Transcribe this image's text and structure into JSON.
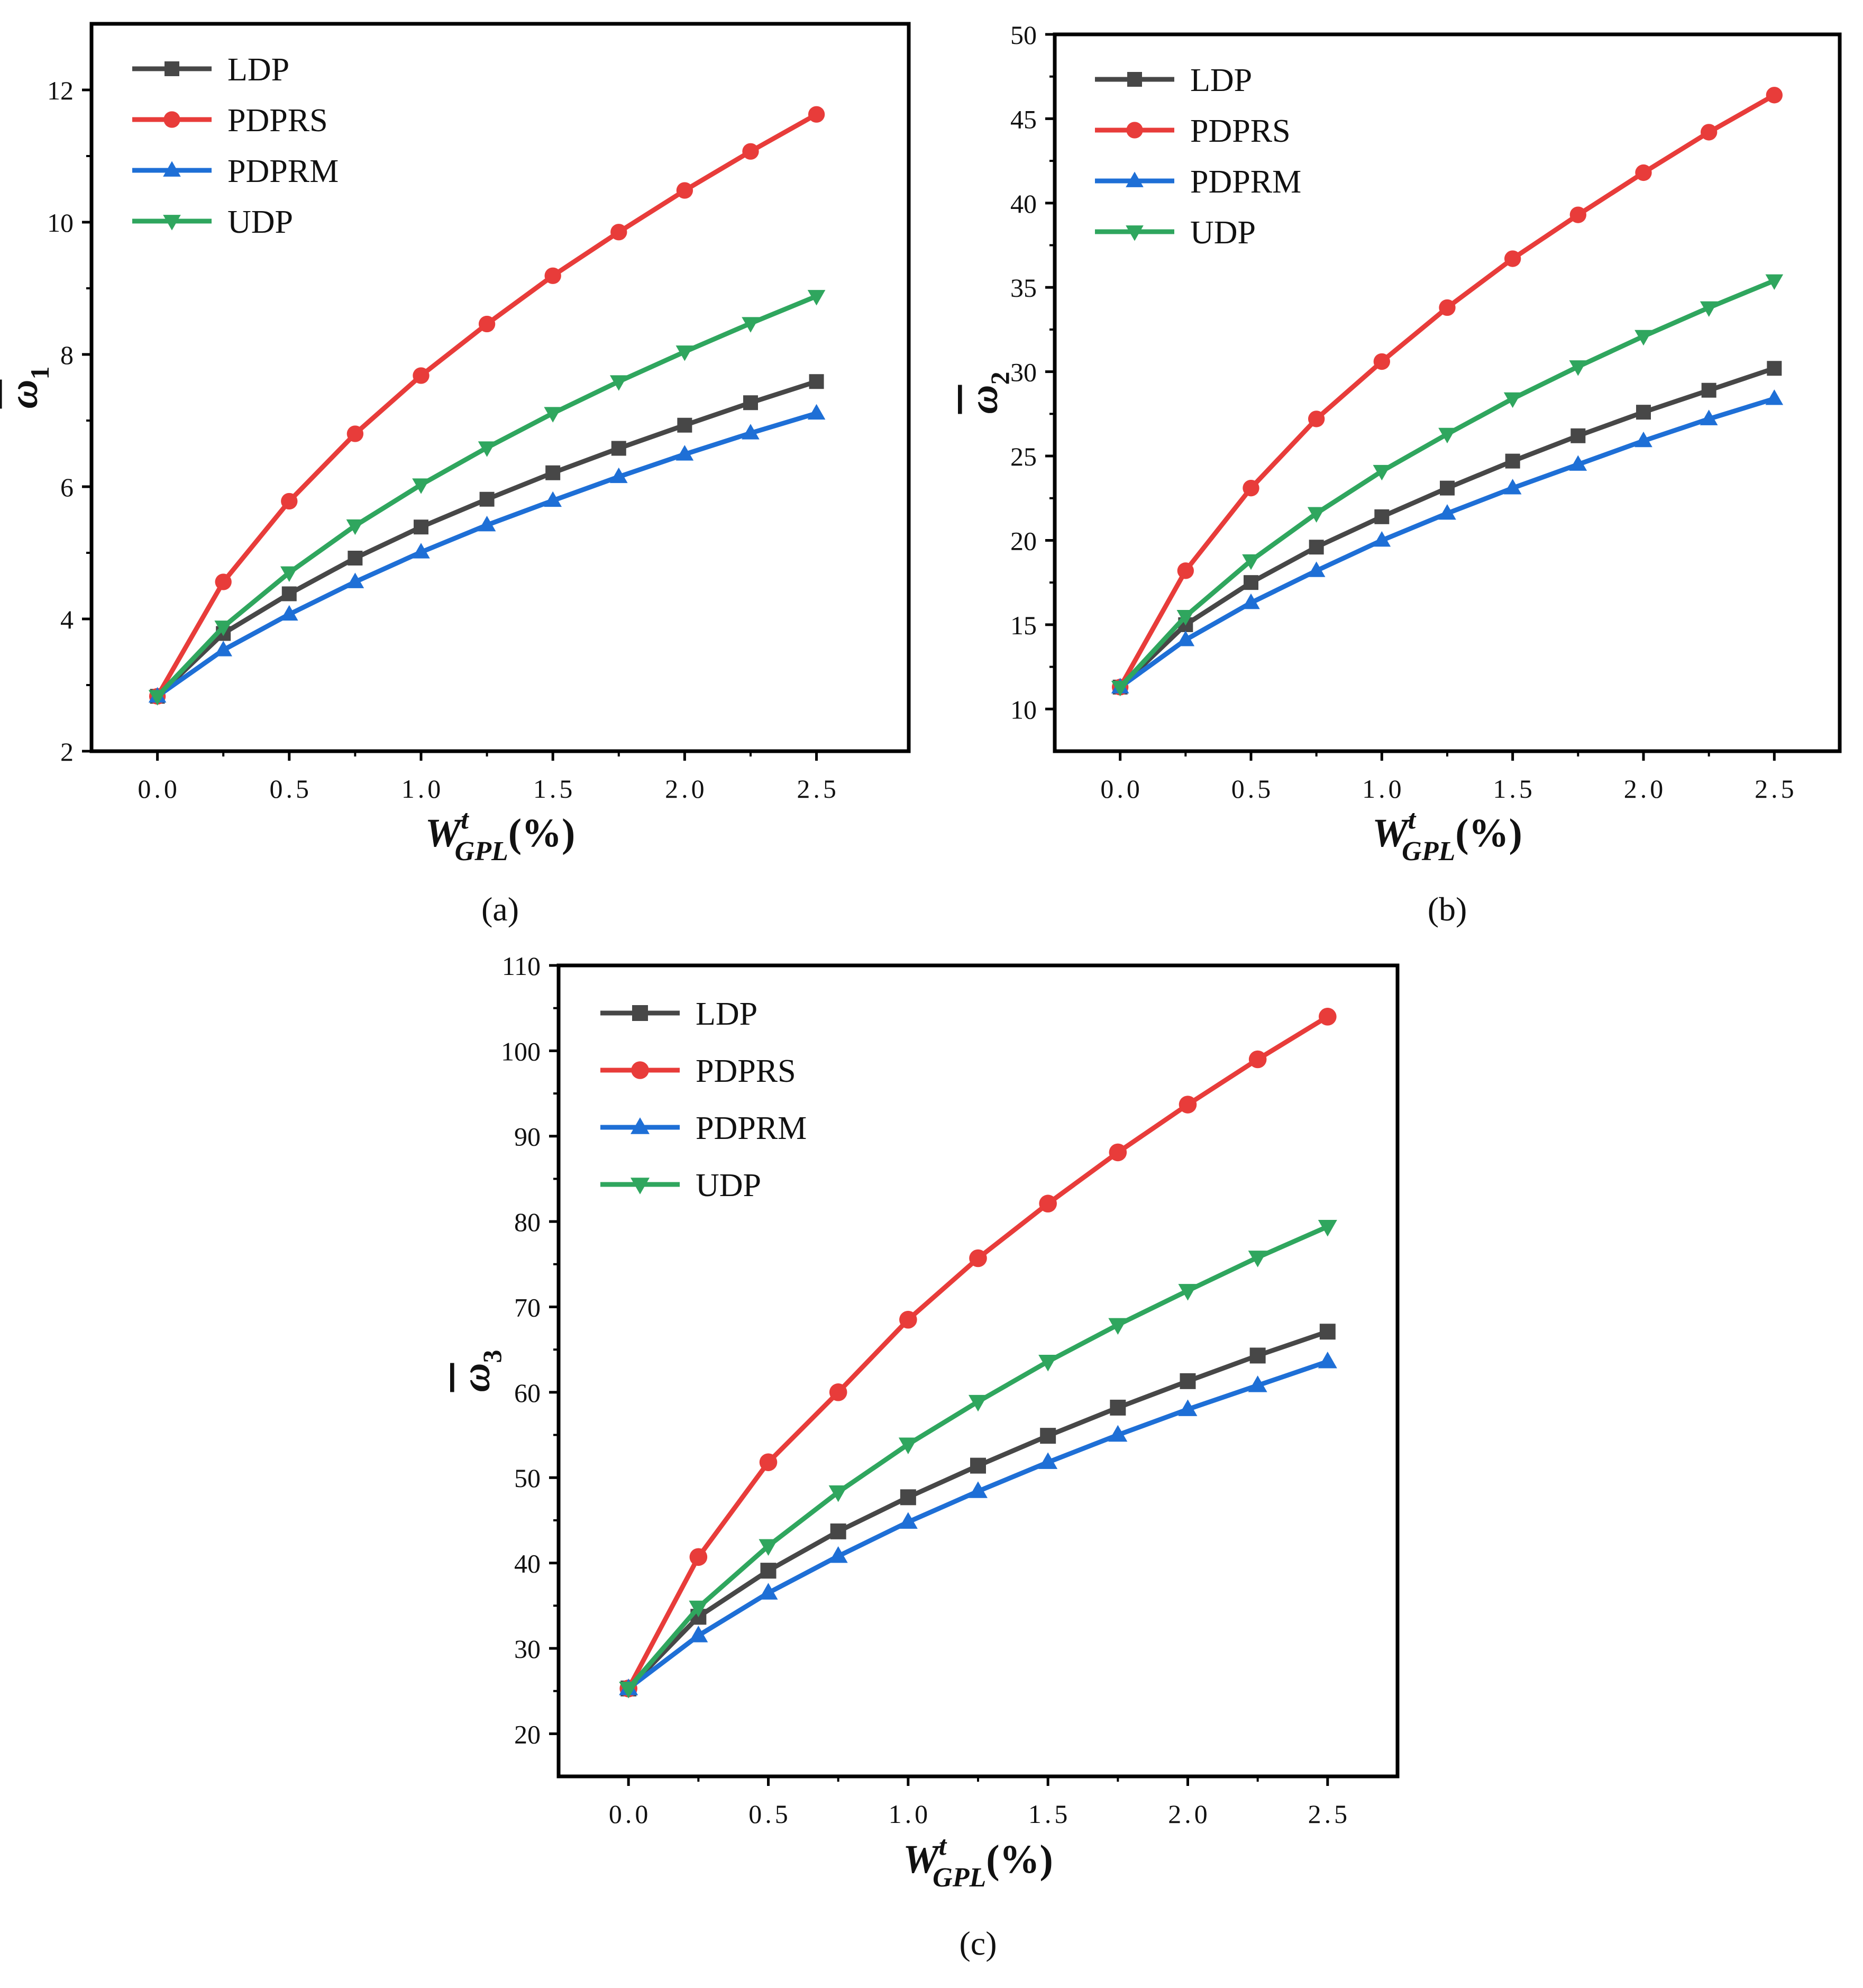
{
  "colors": {
    "LDP": "#474747",
    "PDPRS": "#e83c3a",
    "PDPRM": "#1e6fd6",
    "UDP": "#2fa65e"
  },
  "chart_data": [
    {
      "type": "line",
      "panel": "(a)",
      "xlabel": "W_GPL^t(%)",
      "xlabel_parts": {
        "base": "W",
        "sub": "GPL",
        "sup": "t",
        "suffix": "(%)"
      },
      "ylabel": "ω̄1",
      "ylabel_parts": {
        "symbol": "ω",
        "sub": "1"
      },
      "xlim": [
        -0.25,
        2.85
      ],
      "ylim": [
        2,
        13
      ],
      "xticks": [
        0.0,
        0.5,
        1.0,
        1.5,
        2.0,
        2.5
      ],
      "xtick_labels": [
        "0.0",
        "0.5",
        "1.0",
        "1.5",
        "2.0",
        "2.5"
      ],
      "yticks": [
        2,
        4,
        6,
        8,
        10,
        12
      ],
      "ytick_labels": [
        "2",
        "4",
        "6",
        "8",
        "10",
        "12"
      ],
      "x": [
        0,
        0.25,
        0.5,
        0.75,
        1.0,
        1.25,
        1.5,
        1.75,
        2.0,
        2.25,
        2.5
      ],
      "legend_position": "top-left",
      "series": [
        {
          "name": "LDP",
          "marker": "square",
          "values": [
            2.83,
            3.78,
            4.38,
            4.92,
            5.39,
            5.81,
            6.21,
            6.58,
            6.93,
            7.27,
            7.59
          ]
        },
        {
          "name": "PDPRS",
          "marker": "circle",
          "values": [
            2.83,
            4.56,
            5.78,
            6.8,
            7.68,
            8.46,
            9.19,
            9.85,
            10.48,
            11.07,
            11.63
          ]
        },
        {
          "name": "PDPRM",
          "marker": "triangle-up",
          "values": [
            2.83,
            3.53,
            4.07,
            4.56,
            5.01,
            5.42,
            5.79,
            6.15,
            6.49,
            6.81,
            7.11
          ]
        },
        {
          "name": "UDP",
          "marker": "triangle-down",
          "values": [
            2.83,
            3.88,
            4.7,
            5.41,
            6.03,
            6.59,
            7.11,
            7.59,
            8.04,
            8.47,
            8.88
          ]
        }
      ]
    },
    {
      "type": "line",
      "panel": "(b)",
      "xlabel": "W_GPL^t(%)",
      "xlabel_parts": {
        "base": "W",
        "sub": "GPL",
        "sup": "t",
        "suffix": "(%)"
      },
      "ylabel": "ω̄2",
      "ylabel_parts": {
        "symbol": "ω",
        "sub": "2"
      },
      "xlim": [
        -0.25,
        2.75
      ],
      "ylim": [
        7.5,
        50
      ],
      "xticks": [
        0.0,
        0.5,
        1.0,
        1.5,
        2.0,
        2.5
      ],
      "xtick_labels": [
        "0.0",
        "0.5",
        "1.0",
        "1.5",
        "2.0",
        "2.5"
      ],
      "yticks": [
        10,
        15,
        20,
        25,
        30,
        35,
        40,
        45,
        50
      ],
      "ytick_labels": [
        "10",
        "15",
        "20",
        "25",
        "30",
        "35",
        "40",
        "45",
        "50"
      ],
      "x": [
        0,
        0.25,
        0.5,
        0.75,
        1.0,
        1.25,
        1.5,
        1.75,
        2.0,
        2.25,
        2.5
      ],
      "legend_position": "top-left",
      "series": [
        {
          "name": "LDP",
          "marker": "square",
          "values": [
            11.3,
            15.0,
            17.5,
            19.6,
            21.4,
            23.1,
            24.7,
            26.2,
            27.6,
            28.9,
            30.2
          ]
        },
        {
          "name": "PDPRS",
          "marker": "circle",
          "values": [
            11.3,
            18.2,
            23.1,
            27.2,
            30.6,
            33.8,
            36.7,
            39.3,
            41.8,
            44.2,
            46.4
          ]
        },
        {
          "name": "PDPRM",
          "marker": "triangle-up",
          "values": [
            11.3,
            14.1,
            16.3,
            18.2,
            20.0,
            21.6,
            23.1,
            24.5,
            25.9,
            27.2,
            28.4
          ]
        },
        {
          "name": "UDP",
          "marker": "triangle-down",
          "values": [
            11.3,
            15.5,
            18.8,
            21.6,
            24.1,
            26.3,
            28.4,
            30.3,
            32.1,
            33.8,
            35.4
          ]
        }
      ]
    },
    {
      "type": "line",
      "panel": "(c)",
      "xlabel": "W_GPL^t(%)",
      "xlabel_parts": {
        "base": "W",
        "sub": "GPL",
        "sup": "t",
        "suffix": "(%)"
      },
      "ylabel": "ω̄3",
      "ylabel_parts": {
        "symbol": "ω",
        "sub": "3"
      },
      "xlim": [
        -0.25,
        2.75
      ],
      "ylim": [
        15,
        110
      ],
      "xticks": [
        0.0,
        0.5,
        1.0,
        1.5,
        2.0,
        2.5
      ],
      "xtick_labels": [
        "0.0",
        "0.5",
        "1.0",
        "1.5",
        "2.0",
        "2.5"
      ],
      "yticks": [
        20,
        30,
        40,
        50,
        60,
        70,
        80,
        90,
        100,
        110
      ],
      "ytick_labels": [
        "20",
        "30",
        "40",
        "50",
        "60",
        "70",
        "80",
        "90",
        "100",
        "110"
      ],
      "x": [
        0,
        0.25,
        0.5,
        0.75,
        1.0,
        1.25,
        1.5,
        1.75,
        2.0,
        2.25,
        2.5
      ],
      "legend_position": "top-left",
      "series": [
        {
          "name": "LDP",
          "marker": "square",
          "values": [
            25.3,
            33.7,
            39.1,
            43.7,
            47.7,
            51.4,
            54.9,
            58.2,
            61.3,
            64.3,
            67.1
          ]
        },
        {
          "name": "PDPRS",
          "marker": "circle",
          "values": [
            25.3,
            40.7,
            51.8,
            60.0,
            68.5,
            75.7,
            82.1,
            88.1,
            93.7,
            99.0,
            104.0
          ]
        },
        {
          "name": "PDPRM",
          "marker": "triangle-up",
          "values": [
            25.3,
            31.5,
            36.5,
            40.8,
            44.8,
            48.4,
            51.8,
            55.0,
            58.0,
            60.8,
            63.6
          ]
        },
        {
          "name": "UDP",
          "marker": "triangle-down",
          "values": [
            25.3,
            34.8,
            42.0,
            48.3,
            53.9,
            58.9,
            63.6,
            67.9,
            71.9,
            75.8,
            79.4
          ]
        }
      ]
    }
  ]
}
